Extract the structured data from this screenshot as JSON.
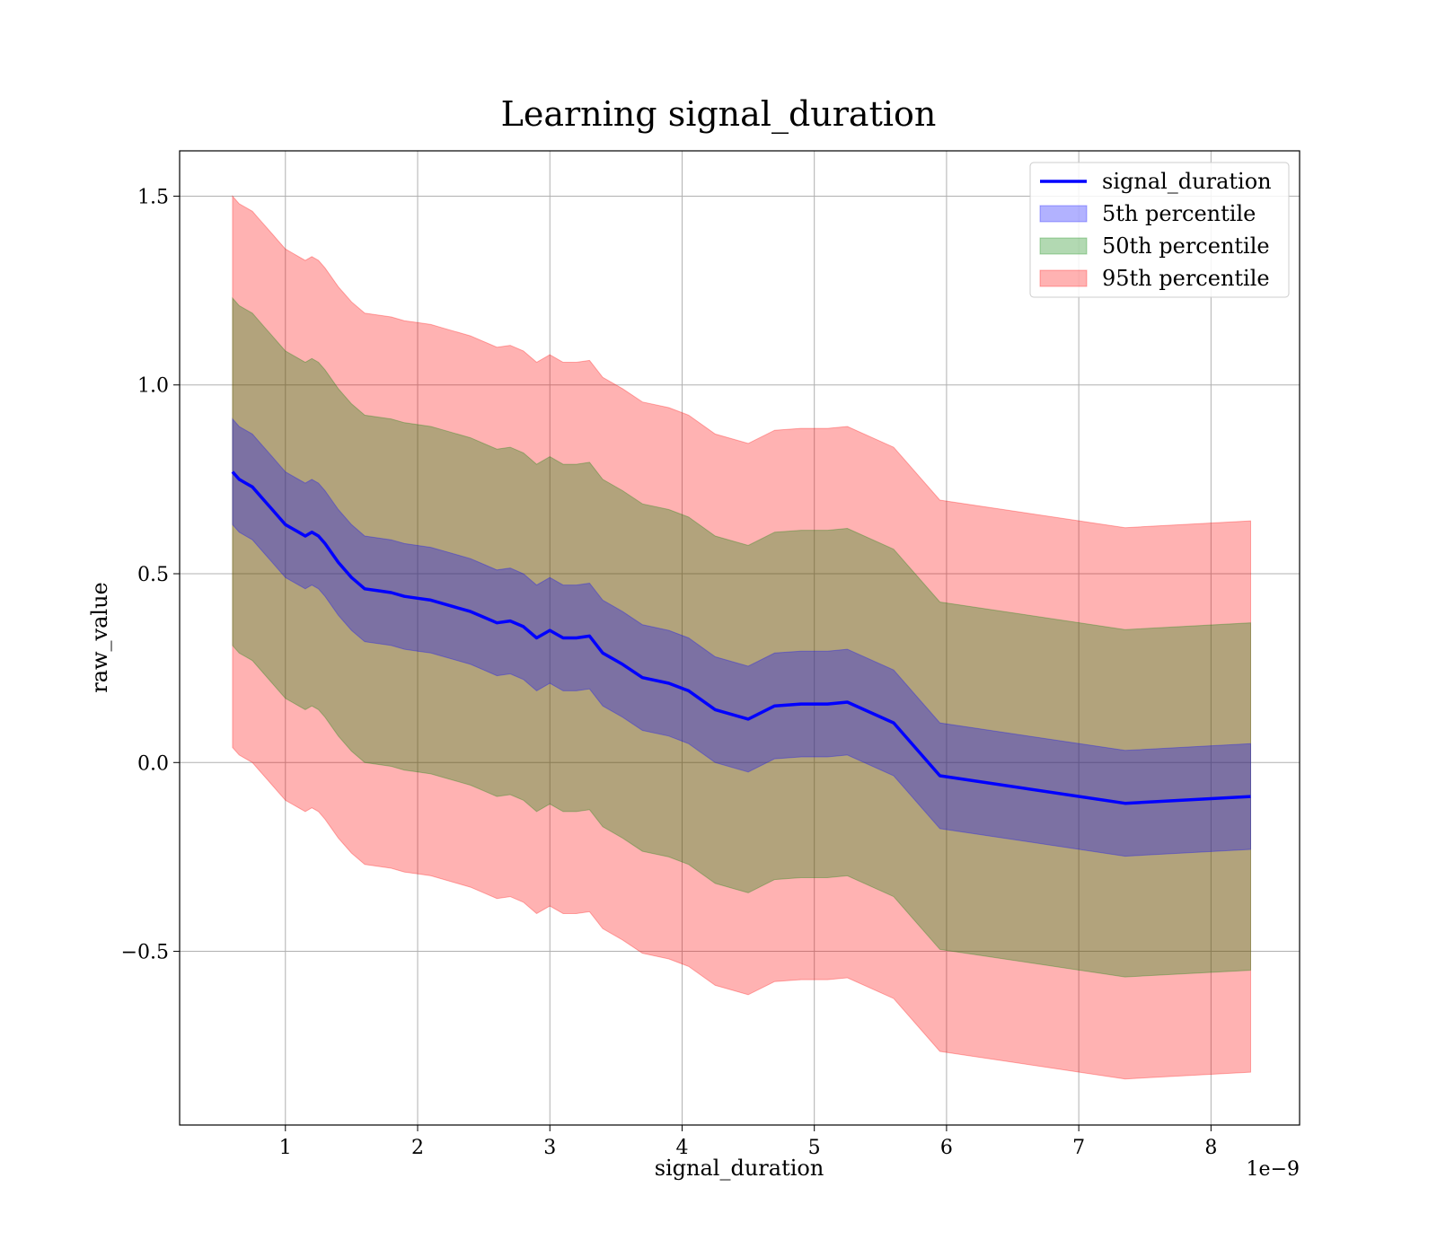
{
  "chart_data": {
    "type": "line",
    "title": "Learning signal_duration",
    "xlabel": "signal_duration",
    "ylabel": "raw_value",
    "x_offset_label": "1e−9",
    "xlim": [
      0.2,
      8.67
    ],
    "ylim": [
      -0.96,
      1.62
    ],
    "x_ticks": [
      1,
      2,
      3,
      4,
      5,
      6,
      7,
      8
    ],
    "x_tick_labels": [
      "1",
      "2",
      "3",
      "4",
      "5",
      "6",
      "7",
      "8"
    ],
    "y_ticks": [
      -0.5,
      0.0,
      0.5,
      1.0,
      1.5
    ],
    "y_tick_labels": [
      "−0.5",
      "0.0",
      "0.5",
      "1.0",
      "1.5"
    ],
    "grid": true,
    "legend_position": "top-right",
    "x": [
      0.6,
      0.65,
      0.7,
      0.75,
      0.8,
      0.85,
      0.9,
      0.95,
      1.0,
      1.05,
      1.1,
      1.15,
      1.2,
      1.25,
      1.3,
      1.4,
      1.5,
      1.6,
      1.7,
      1.8,
      1.9,
      2.0,
      2.1,
      2.2,
      2.3,
      2.4,
      2.5,
      2.6,
      2.7,
      2.8,
      2.9,
      3.0,
      3.1,
      3.2,
      3.3,
      3.4,
      3.55,
      3.7,
      3.9,
      4.05,
      4.25,
      4.5,
      4.7,
      4.9,
      5.1,
      5.25,
      5.6,
      5.95,
      7.35,
      8.3
    ],
    "series": [
      {
        "name": "signal_duration",
        "color": "#0000ff",
        "values": [
          0.77,
          0.75,
          0.74,
          0.73,
          0.71,
          0.69,
          0.67,
          0.65,
          0.63,
          0.62,
          0.61,
          0.6,
          0.61,
          0.6,
          0.58,
          0.53,
          0.49,
          0.46,
          0.455,
          0.45,
          0.44,
          0.435,
          0.43,
          0.42,
          0.41,
          0.4,
          0.385,
          0.37,
          0.375,
          0.36,
          0.33,
          0.35,
          0.33,
          0.33,
          0.335,
          0.29,
          0.26,
          0.225,
          0.21,
          0.19,
          0.14,
          0.115,
          0.15,
          0.155,
          0.155,
          0.16,
          0.105,
          -0.035,
          -0.108,
          -0.09
        ]
      }
    ],
    "bands": [
      {
        "name": "5th percentile",
        "color": "#0000ff",
        "half_width": 0.14
      },
      {
        "name": "50th percentile",
        "color": "#008000",
        "half_width": 0.46
      },
      {
        "name": "95th percentile",
        "color": "#ff0000",
        "half_width": 0.73
      }
    ]
  }
}
